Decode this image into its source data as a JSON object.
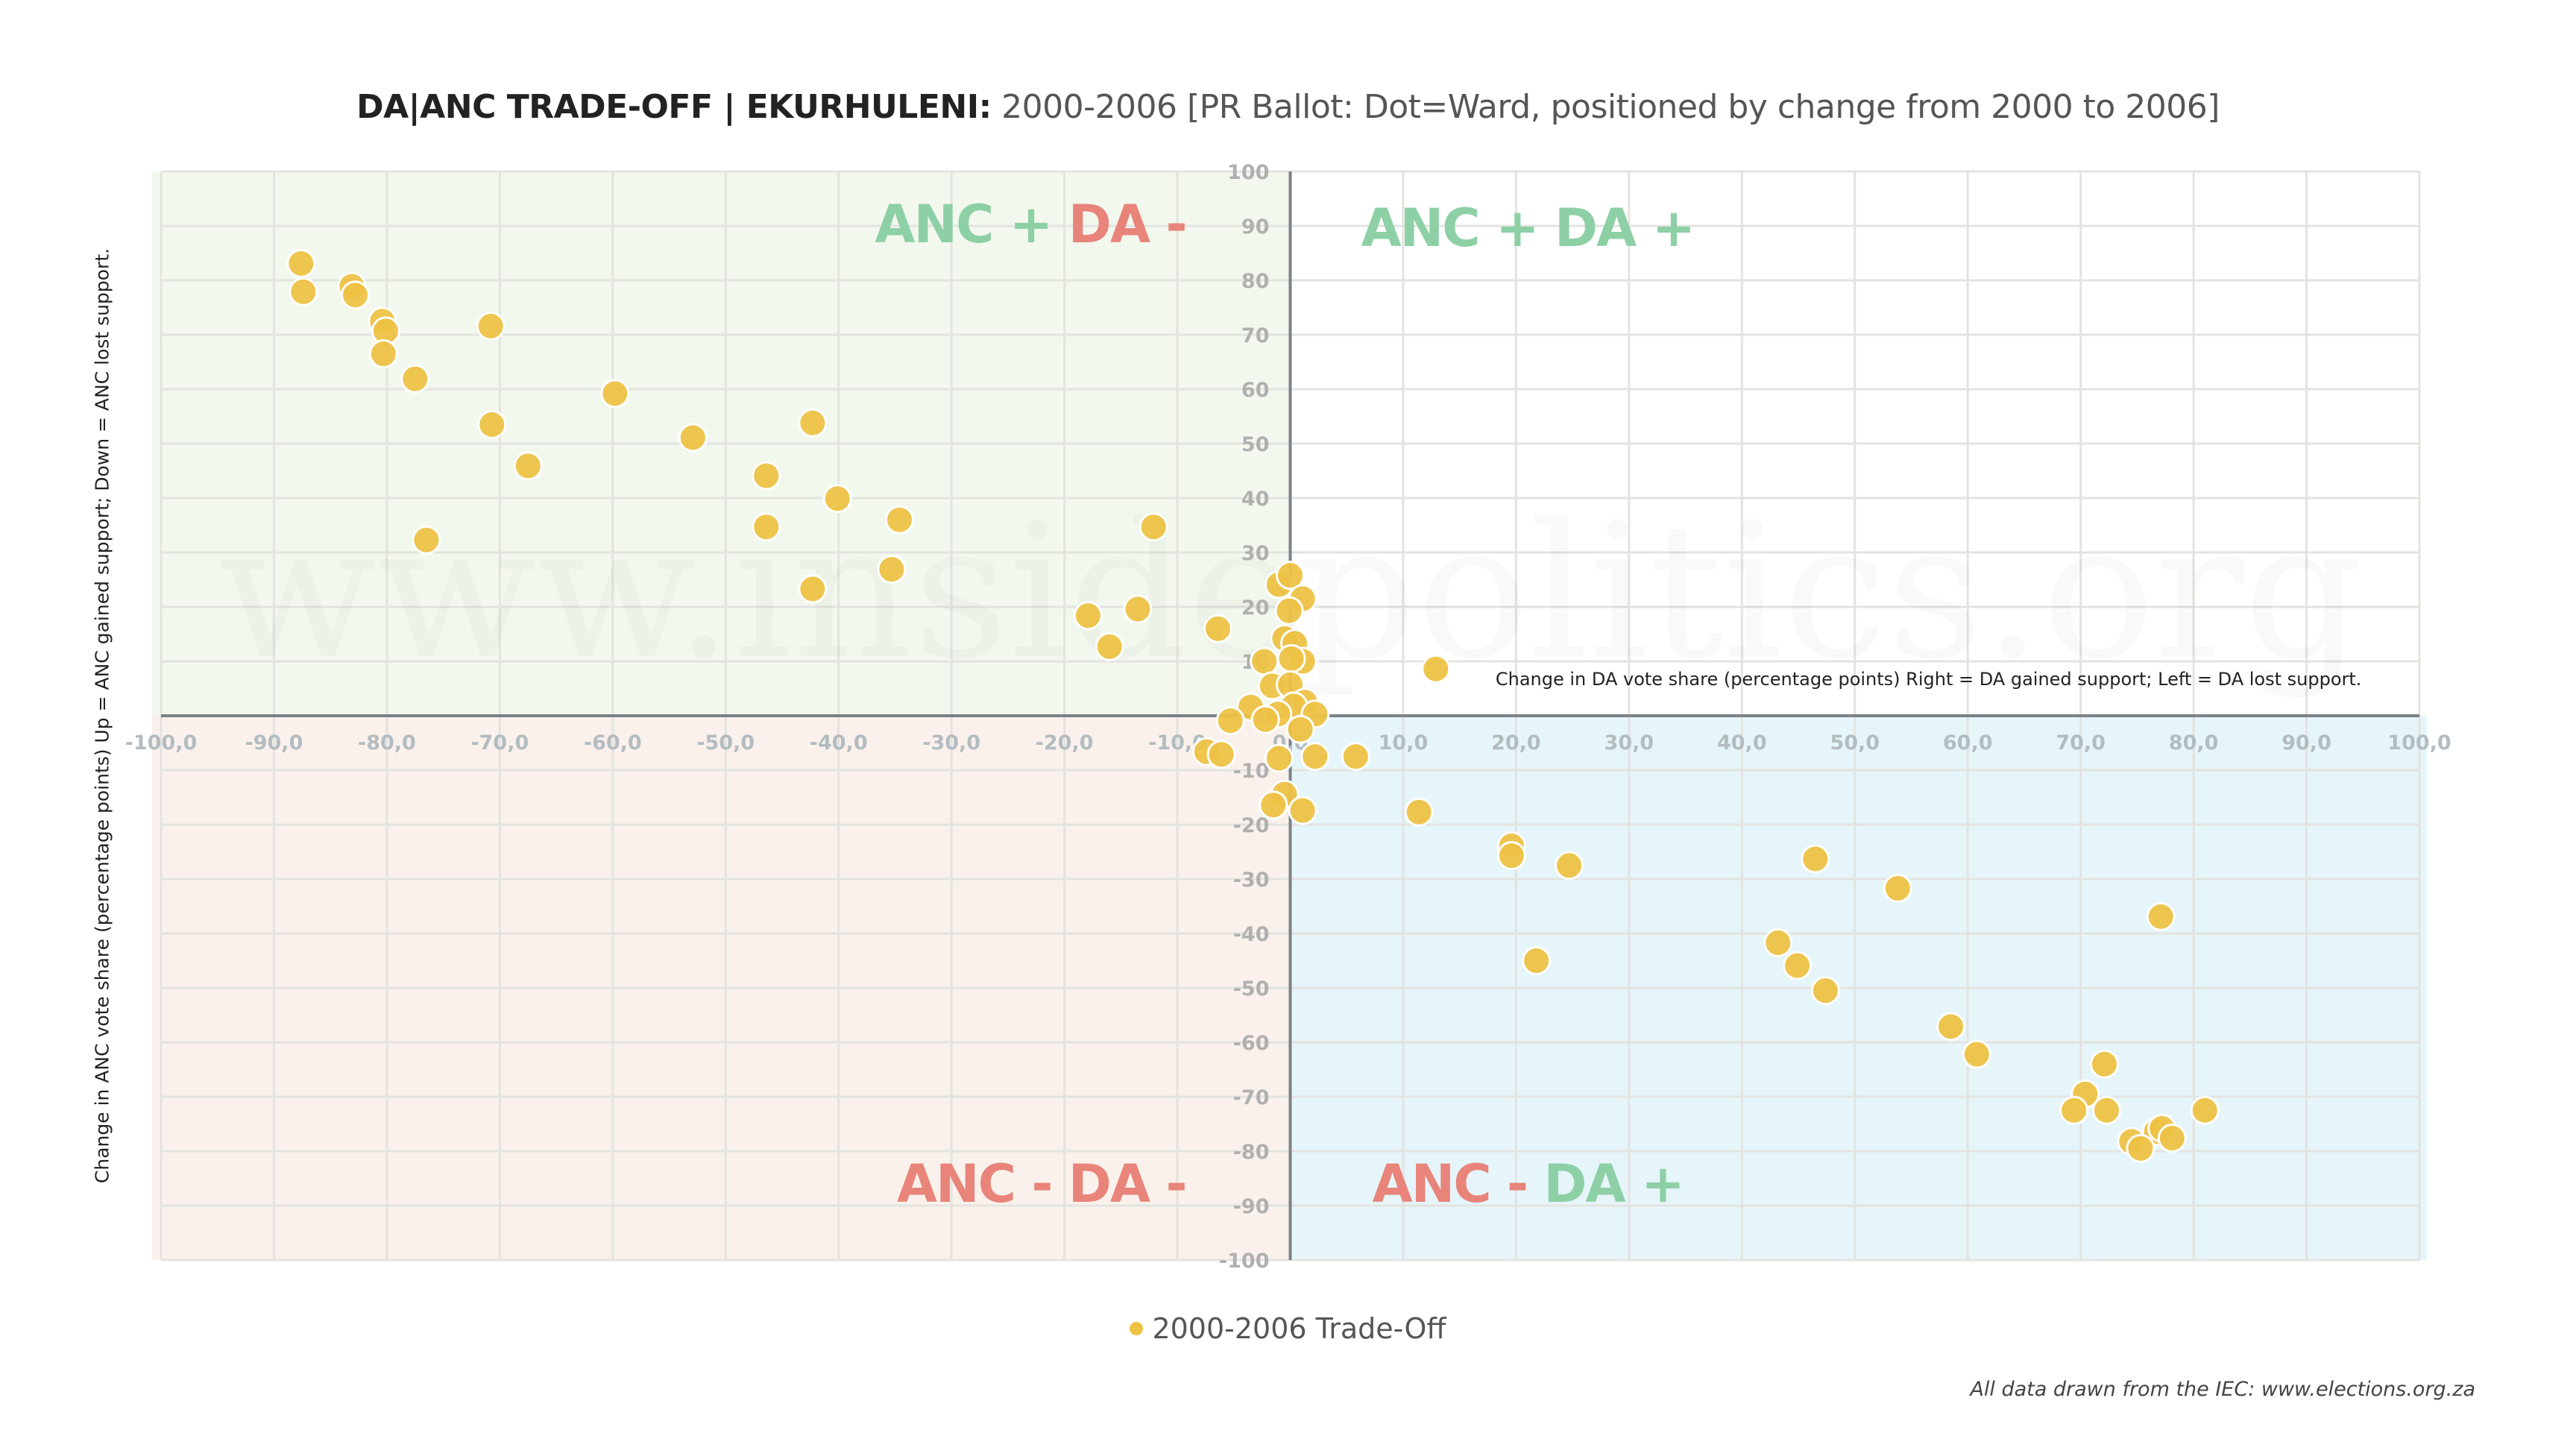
{
  "title": {
    "bold": "DA|ANC TRADE-OFF | EKURHULENI:",
    "rest": " 2000-2006 [PR Ballot: Dot=Ward, positioned by change from 2000 to 2006]"
  },
  "colors": {
    "point": "#EDC244",
    "point_stroke": "#ffffff",
    "q_upper_left": "#F3F8EE",
    "q_upper_right": "#FFFFFF",
    "q_lower_left": "#FAF1EC",
    "q_lower_right": "#E6F5FA",
    "green": "#8ED0A6",
    "red": "#E8847A",
    "axis": "#7a8288",
    "grid": "#e3e3e0"
  },
  "quadrant_labels": {
    "upper_left": [
      {
        "text": "ANC +",
        "color": "green"
      },
      {
        "text": " DA -",
        "color": "red"
      }
    ],
    "upper_right": [
      {
        "text": "ANC +",
        "color": "green"
      },
      {
        "text": " DA +",
        "color": "green"
      }
    ],
    "lower_left": [
      {
        "text": "ANC -",
        "color": "red"
      },
      {
        "text": " DA -",
        "color": "red"
      }
    ],
    "lower_right": [
      {
        "text": "ANC -",
        "color": "red"
      },
      {
        "text": " DA +",
        "color": "green"
      }
    ]
  },
  "watermark": "www.insidepolitics.org",
  "footer": "All data drawn from the IEC: www.elections.org.za",
  "chart_data": {
    "type": "scatter",
    "title": "DA|ANC TRADE-OFF | EKURHULENI: 2000-2006 [PR Ballot: Dot=Ward, positioned by change from 2000 to 2006]",
    "xlabel": "Change in DA vote share (percentage points) Right = DA gained support; Left = DA lost support.",
    "ylabel": "Change in ANC vote share (percentage points) Up = ANC gained support; Down = ANC lost support.",
    "xlim": [
      -100,
      100
    ],
    "ylim": [
      -100,
      100
    ],
    "x_ticks": [
      "-100,0",
      "-90,0",
      "-80,0",
      "-70,0",
      "-60,0",
      "-50,0",
      "-40,0",
      "-30,0",
      "-20,0",
      "-10,0",
      "0,0",
      "10,0",
      "20,0",
      "30,0",
      "40,0",
      "50,0",
      "60,0",
      "70,0",
      "80,0",
      "90,0",
      "100,0"
    ],
    "y_ticks": [
      "100",
      "90",
      "80",
      "70",
      "60",
      "50",
      "40",
      "30",
      "20",
      "10",
      "0",
      "-10",
      "-20",
      "-30",
      "-40",
      "-50",
      "-60",
      "-70",
      "-80",
      "-90",
      "-100"
    ],
    "grid": true,
    "legend": {
      "position": "bottom-center",
      "entries": [
        "2000-2006 Trade-Off"
      ]
    },
    "series": [
      {
        "name": "2000-2006 Trade-Off",
        "points": [
          [
            -87.6,
            83.1
          ],
          [
            -87.4,
            77.9
          ],
          [
            -83.1,
            78.9
          ],
          [
            -82.8,
            77.3
          ],
          [
            -80.4,
            72.5
          ],
          [
            -80.1,
            70.7
          ],
          [
            -80.3,
            66.5
          ],
          [
            -77.5,
            61.9
          ],
          [
            -70.8,
            71.6
          ],
          [
            -70.7,
            53.5
          ],
          [
            -67.5,
            45.9
          ],
          [
            -76.5,
            32.3
          ],
          [
            -59.8,
            59.2
          ],
          [
            -52.9,
            51.1
          ],
          [
            -46.4,
            44.1
          ],
          [
            -46.4,
            34.7
          ],
          [
            -42.3,
            53.8
          ],
          [
            -42.3,
            23.3
          ],
          [
            -40.1,
            39.9
          ],
          [
            -34.6,
            36.0
          ],
          [
            -35.3,
            26.9
          ],
          [
            -17.9,
            18.4
          ],
          [
            -16.0,
            12.7
          ],
          [
            -13.5,
            19.6
          ],
          [
            -12.1,
            34.7
          ],
          [
            -6.4,
            16.0
          ],
          [
            -1.0,
            24.1
          ],
          [
            0.0,
            25.8
          ],
          [
            1.1,
            21.5
          ],
          [
            -0.1,
            19.3
          ],
          [
            -0.5,
            14.2
          ],
          [
            0.4,
            13.3
          ],
          [
            1.1,
            10.0
          ],
          [
            -2.3,
            10.0
          ],
          [
            0.1,
            10.5
          ],
          [
            -1.6,
            5.5
          ],
          [
            0.0,
            5.7
          ],
          [
            -3.5,
            1.6
          ],
          [
            1.3,
            2.5
          ],
          [
            0.3,
            1.8
          ],
          [
            2.2,
            0.3
          ],
          [
            -1.1,
            0.3
          ],
          [
            -2.2,
            -0.7
          ],
          [
            -5.3,
            -0.9
          ],
          [
            0.9,
            -2.5
          ],
          [
            -7.4,
            -6.6
          ],
          [
            -6.1,
            -7.1
          ],
          [
            -1.0,
            -7.8
          ],
          [
            2.2,
            -7.5
          ],
          [
            5.8,
            -7.5
          ],
          [
            -0.5,
            -14.4
          ],
          [
            -1.5,
            -16.4
          ],
          [
            1.1,
            -17.4
          ],
          [
            11.4,
            -17.7
          ],
          [
            12.9,
            8.6
          ],
          [
            19.6,
            -23.9
          ],
          [
            19.6,
            -25.7
          ],
          [
            24.7,
            -27.5
          ],
          [
            21.8,
            -45.0
          ],
          [
            46.5,
            -26.3
          ],
          [
            53.8,
            -31.7
          ],
          [
            43.2,
            -41.7
          ],
          [
            44.9,
            -45.9
          ],
          [
            47.4,
            -50.5
          ],
          [
            58.5,
            -57.1
          ],
          [
            60.8,
            -62.2
          ],
          [
            77.1,
            -36.9
          ],
          [
            72.1,
            -64.0
          ],
          [
            70.4,
            -69.5
          ],
          [
            69.4,
            -72.5
          ],
          [
            72.3,
            -72.5
          ],
          [
            81.0,
            -72.5
          ],
          [
            76.7,
            -76.4
          ],
          [
            77.2,
            -75.8
          ],
          [
            74.5,
            -78.2
          ],
          [
            75.3,
            -79.5
          ],
          [
            78.1,
            -77.6
          ]
        ]
      }
    ],
    "annotations": [
      {
        "text": "Change in DA vote share (percentage points) Right = DA gained support; Left = DA lost support.",
        "at": [
          12.9,
          8.6
        ]
      }
    ]
  }
}
